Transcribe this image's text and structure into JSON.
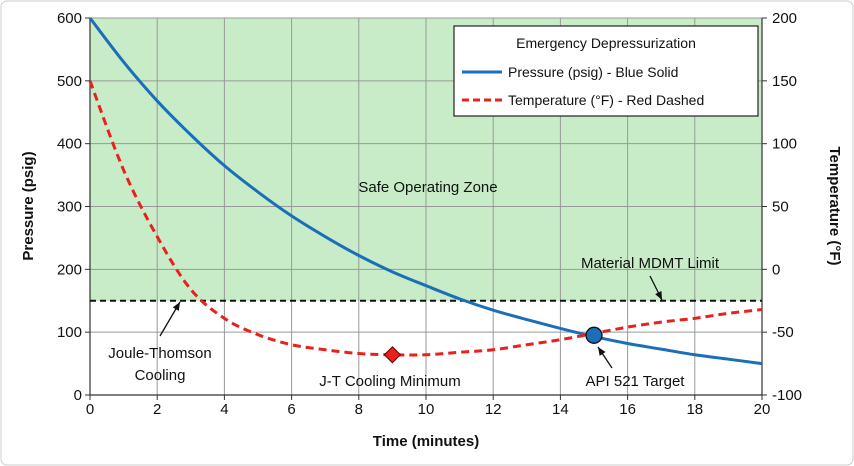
{
  "chart_data": {
    "type": "line",
    "title": "",
    "xlabel": "Time (minutes)",
    "ylabel": "Pressure (psig)",
    "y2label": "Temperature (°F)",
    "xlim": [
      0,
      20
    ],
    "ylim": [
      0,
      600
    ],
    "y2lim": [
      -100,
      200
    ],
    "xticks": [
      0,
      2,
      4,
      6,
      8,
      10,
      12,
      14,
      16,
      18,
      20
    ],
    "yticks": [
      0,
      100,
      200,
      300,
      400,
      500,
      600
    ],
    "y2ticks": [
      -100,
      -50,
      0,
      50,
      100,
      150,
      200
    ],
    "grid": true,
    "legend": {
      "title": "Emergency Depressurization",
      "placement": "top-right",
      "entries": [
        "Pressure (psig) - Blue Solid",
        "Temperature (°F) - Red Dashed"
      ]
    },
    "series": [
      {
        "name": "Pressure (psig) - Blue Solid",
        "axis": "left",
        "color": "#1a6fb8",
        "style": "solid",
        "x": [
          0,
          1,
          2,
          3,
          4,
          5,
          6,
          7,
          8,
          9,
          10,
          11,
          12,
          13,
          14,
          15,
          16,
          17,
          18,
          19,
          20
        ],
        "values": [
          600,
          530,
          468,
          414,
          365,
          323,
          285,
          252,
          222,
          196,
          174,
          153,
          135,
          120,
          106,
          93,
          82,
          73,
          64,
          57,
          50
        ]
      },
      {
        "name": "Temperature (°F) - Red Dashed",
        "axis": "right",
        "color": "#e8211d",
        "style": "dashed",
        "x": [
          0,
          1,
          2,
          3,
          4,
          5,
          6,
          7,
          8,
          9,
          10,
          11,
          12,
          13,
          14,
          15,
          16,
          17,
          18,
          19,
          20
        ],
        "values": [
          150,
          79,
          26,
          -16,
          -39,
          -52,
          -60,
          -64,
          -67,
          -68,
          -68,
          -66,
          -64,
          -60,
          -56,
          -51,
          -46,
          -42,
          -39,
          -35,
          -32
        ]
      }
    ],
    "mdmt_limit_f": -25,
    "shaded_region": {
      "label": "Safe Operating Zone",
      "color": "#c8ecc8"
    },
    "markers": [
      {
        "label": "J-T Cooling Minimum",
        "x": 9,
        "y2": -68,
        "shape": "diamond",
        "color": "#e8211d"
      },
      {
        "label": "API 521 Target",
        "x": 15,
        "y": 95,
        "shape": "circle",
        "color": "#1a6fb8"
      }
    ],
    "annotations": {
      "safe_zone": "Safe Operating Zone",
      "mdmt": "Material MDMT Limit",
      "jt_line1": "Joule-Thomson",
      "jt_line2": "Cooling",
      "jt_min": "J-T Cooling Minimum",
      "api": "API 521 Target"
    }
  }
}
